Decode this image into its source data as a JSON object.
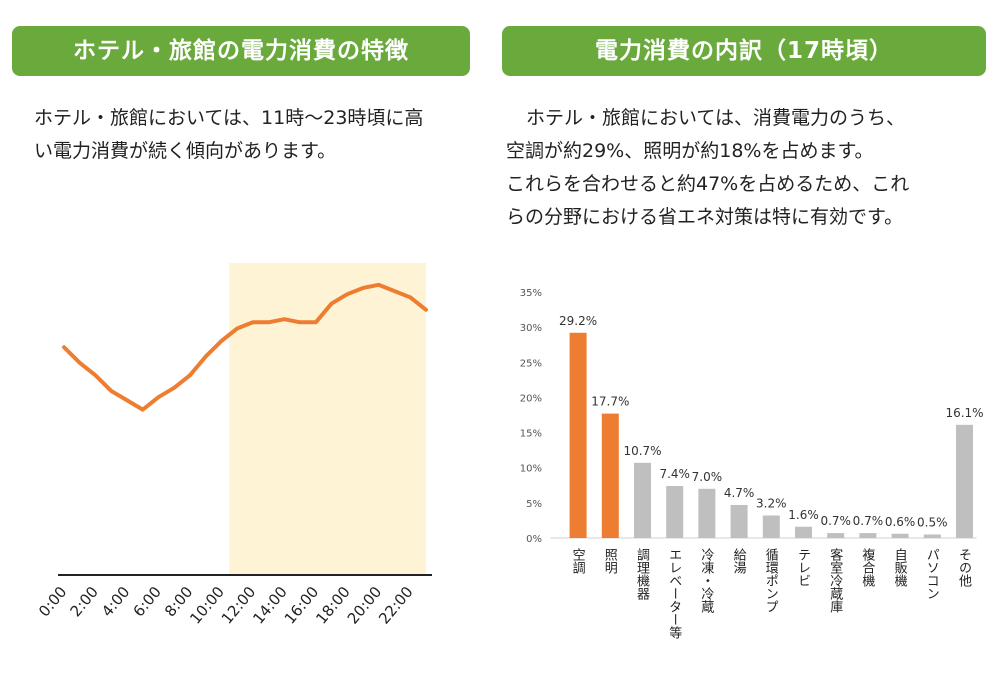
{
  "left_panel": {
    "header": "ホテル・旅館の電力消費の特徴",
    "text": "ホテル・旅館においては、11時〜23時頃に高い電力消費が続く傾向があります。"
  },
  "right_panel": {
    "header": "電力消費の内訳（17時頃）",
    "text_lines": [
      "ホテル・旅館においては、消費電力のうち、",
      "空調が約29%、照明が約18%を占めます。",
      "これらを合わせると約47%を占めるため、これ",
      "らの分野における省エネ対策は特に有効です。"
    ]
  },
  "colors": {
    "header_green": "#6aaa3c",
    "line_orange": "#ed7d31",
    "highlight": "#fff3d6",
    "bar_orange": "#ed7d31",
    "bar_gray": "#bfbfbf"
  },
  "chart_data": [
    {
      "type": "line",
      "title": "",
      "x_tick_labels": [
        "0:00",
        "2:00",
        "4:00",
        "6:00",
        "8:00",
        "10:00",
        "12:00",
        "14:00",
        "16:00",
        "18:00",
        "20:00",
        "22:00"
      ],
      "x": [
        0,
        1,
        2,
        3,
        4,
        5,
        6,
        7,
        8,
        9,
        10,
        11,
        12,
        13,
        14,
        15,
        16,
        17,
        18,
        19,
        20,
        21,
        22,
        23
      ],
      "values": [
        73,
        68,
        64,
        59,
        56,
        53,
        57,
        60,
        64,
        70,
        75,
        79,
        81,
        81,
        82,
        81,
        81,
        87,
        90,
        92,
        93,
        91,
        89,
        85
      ],
      "ylim": [
        0,
        100
      ],
      "highlight_range": [
        10.5,
        23
      ],
      "grid": false,
      "xlabel": "",
      "ylabel": ""
    },
    {
      "type": "bar",
      "title": "",
      "categories": [
        "空調",
        "照明",
        "調理機器",
        "エレベーター等",
        "冷凍・冷蔵",
        "給湯",
        "循環ポンプ",
        "テレビ",
        "客室冷蔵庫",
        "複合機",
        "自販機",
        "パソコン",
        "その他"
      ],
      "values": [
        29.2,
        17.7,
        10.7,
        7.4,
        7.0,
        4.7,
        3.2,
        1.6,
        0.7,
        0.7,
        0.6,
        0.5,
        16.1
      ],
      "data_labels": [
        "29.2%",
        "17.7%",
        "10.7%",
        "7.4%",
        "7.0%",
        "4.7%",
        "3.2%",
        "1.6%",
        "0.7%",
        "0.7%",
        "0.6%",
        "0.5%",
        "16.1%"
      ],
      "highlighted": [
        true,
        true,
        false,
        false,
        false,
        false,
        false,
        false,
        false,
        false,
        false,
        false,
        false
      ],
      "ylim": [
        0,
        35
      ],
      "y_ticks": [
        0,
        5,
        10,
        15,
        20,
        25,
        30,
        35
      ],
      "y_tick_labels": [
        "0%",
        "5%",
        "10%",
        "15%",
        "20%",
        "25%",
        "30%",
        "35%"
      ],
      "grid": false,
      "xlabel": "",
      "ylabel": ""
    }
  ]
}
